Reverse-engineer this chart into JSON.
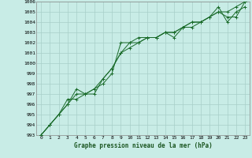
{
  "title": "Graphe pression niveau de la mer (hPa)",
  "bg_color": "#c8ece6",
  "grid_color": "#a8cfc8",
  "line_color": "#1a6b2a",
  "marker_color": "#1a6b2a",
  "xlim": [
    -0.5,
    23.5
  ],
  "ylim": [
    993,
    1006
  ],
  "xticks": [
    0,
    1,
    2,
    3,
    4,
    5,
    6,
    7,
    8,
    9,
    10,
    11,
    12,
    13,
    14,
    15,
    16,
    17,
    18,
    19,
    20,
    21,
    22,
    23
  ],
  "yticks": [
    993,
    994,
    995,
    996,
    997,
    998,
    999,
    1000,
    1001,
    1002,
    1003,
    1004,
    1005,
    1006
  ],
  "series1": [
    993.0,
    994.0,
    995.0,
    996.0,
    997.0,
    997.0,
    997.5,
    998.0,
    999.0,
    1002.0,
    1002.0,
    1002.5,
    1002.5,
    1002.5,
    1003.0,
    1003.0,
    1003.5,
    1003.5,
    1004.0,
    1004.5,
    1005.0,
    1005.0,
    1005.5,
    1006.0
  ],
  "series2": [
    993.0,
    994.0,
    995.0,
    996.0,
    997.5,
    997.0,
    997.0,
    998.5,
    999.5,
    1001.0,
    1002.0,
    1002.0,
    1002.5,
    1002.5,
    1003.0,
    1002.5,
    1003.5,
    1004.0,
    1004.0,
    1004.5,
    1005.5,
    1004.0,
    1005.0,
    1005.5
  ],
  "series3": [
    993.0,
    994.0,
    995.0,
    996.5,
    996.5,
    997.0,
    997.5,
    998.5,
    999.5,
    1001.0,
    1001.5,
    1002.0,
    1002.5,
    1002.5,
    1003.0,
    1003.0,
    1003.5,
    1004.0,
    1004.0,
    1004.5,
    1005.0,
    1004.5,
    1004.5,
    1006.0
  ],
  "tick_fontsize": 4.5,
  "title_fontsize": 5.5,
  "linewidth": 0.7,
  "markersize": 2.5
}
